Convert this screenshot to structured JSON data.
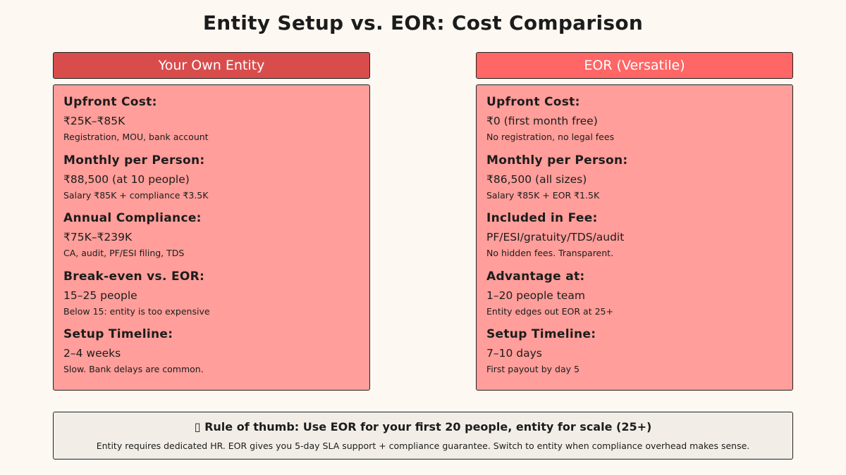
{
  "title": "Entity Setup vs. EOR: Cost Comparison",
  "colors": {
    "left_header": "#d94c4c",
    "right_header": "#ff6666",
    "panel": "#ff9e9a",
    "footer": "#f2eee7"
  },
  "left": {
    "header": "Your Own Entity",
    "sections": [
      {
        "heading": "Upfront Cost:",
        "value": "₹25K–₹85K",
        "note": "Registration, MOU, bank account"
      },
      {
        "heading": "Monthly per Person:",
        "value": "₹88,500 (at 10 people)",
        "note": "Salary ₹85K + compliance ₹3.5K"
      },
      {
        "heading": "Annual Compliance:",
        "value": "₹75K–₹239K",
        "note": "CA, audit, PF/ESI filing, TDS"
      },
      {
        "heading": "Break-even vs. EOR:",
        "value": "15–25 people",
        "note": "Below 15: entity is too expensive"
      },
      {
        "heading": "Setup Timeline:",
        "value": "2–4 weeks",
        "note": "Slow. Bank delays are common."
      }
    ]
  },
  "right": {
    "header": "EOR (Versatile)",
    "sections": [
      {
        "heading": "Upfront Cost:",
        "value": "₹0 (first month free)",
        "note": "No registration, no legal fees"
      },
      {
        "heading": "Monthly per Person:",
        "value": "₹86,500 (all sizes)",
        "note": "Salary ₹85K + EOR ₹1.5K"
      },
      {
        "heading": "Included in Fee:",
        "value": "PF/ESI/gratuity/TDS/audit",
        "note": "No hidden fees. Transparent."
      },
      {
        "heading": "Advantage at:",
        "value": "1–20 people team",
        "note": "Entity edges out EOR at 25+"
      },
      {
        "heading": "Setup Timeline:",
        "value": "7–10 days",
        "note": "First payout by day 5"
      }
    ]
  },
  "footer": {
    "headline": "▯ Rule of thumb: Use EOR for your first 20 people, entity for scale (25+)",
    "note": "Entity requires dedicated HR. EOR gives you 5-day SLA support + compliance guarantee. Switch to entity when compliance overhead makes sense."
  }
}
